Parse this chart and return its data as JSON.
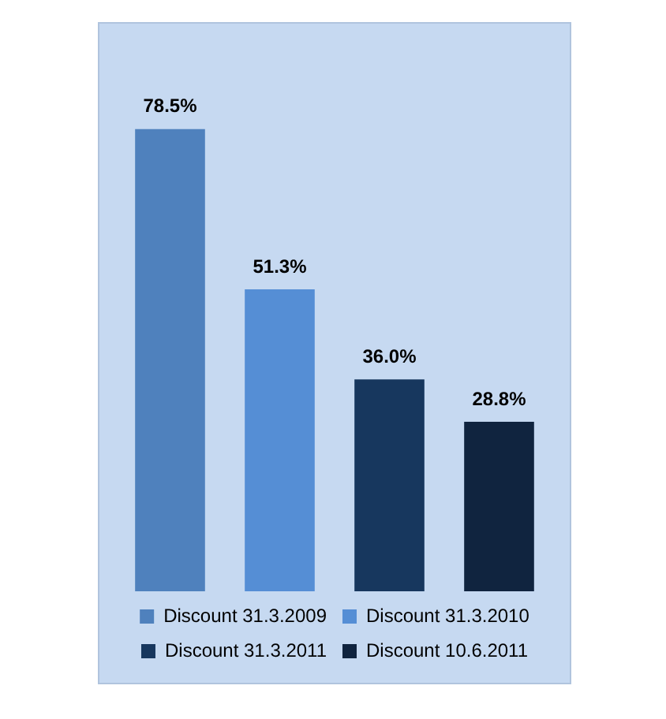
{
  "chart_data": {
    "type": "bar",
    "categories": [
      null,
      null,
      null,
      null
    ],
    "series": [
      {
        "name": "Discount 31.3.2009",
        "color": "#4f81bd",
        "values": [
          78.5,
          null,
          null,
          null
        ],
        "value_labels": [
          "78.5%",
          null,
          null,
          null
        ]
      },
      {
        "name": "Discount 31.3.2010",
        "color": "#558ed5",
        "values": [
          null,
          51.3,
          null,
          null
        ],
        "value_labels": [
          null,
          "51.3%",
          null,
          null
        ]
      },
      {
        "name": "Discount 31.3.2011",
        "color": "#17375e",
        "values": [
          null,
          null,
          36.0,
          null
        ],
        "value_labels": [
          null,
          null,
          "36.0%",
          null
        ]
      },
      {
        "name": "Discount 10.6.2011",
        "color": "#10243f",
        "values": [
          null,
          null,
          null,
          28.8
        ],
        "value_labels": [
          null,
          null,
          null,
          "28.8%"
        ]
      }
    ],
    "stacked": true,
    "legend": "bottom"
  }
}
